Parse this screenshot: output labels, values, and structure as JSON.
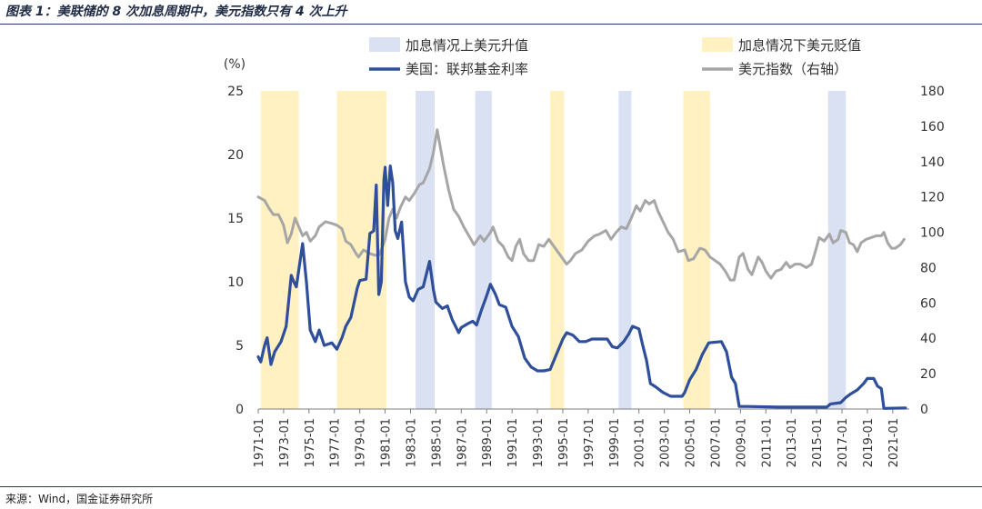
{
  "figure": {
    "title": "图表 1：美联储的 8 次加息周期中，美元指数只有 4 次上升",
    "source": "来源：Wind，国金证券研究所"
  },
  "colors": {
    "up_band": "#d9e1f2",
    "down_band": "#fff1c2",
    "fed_rate": "#2f4f9a",
    "usd_index": "#a6a6a6",
    "axis": "#7f7f7f",
    "text": "#333333"
  },
  "chart_data": {
    "type": "line",
    "title": "",
    "left_unit": "(%)",
    "x_start": 1971.0,
    "x_end": 2022.3,
    "y_left": {
      "min": 0,
      "max": 25,
      "ticks": [
        "0",
        "5",
        "10",
        "15",
        "20",
        "25"
      ]
    },
    "y_right": {
      "min": 0,
      "max": 180,
      "ticks": [
        "0",
        "20",
        "40",
        "60",
        "80",
        "100",
        "120",
        "140",
        "160",
        "180"
      ]
    },
    "x_ticks": [
      "1971-01",
      "1973-01",
      "1975-01",
      "1977-01",
      "1979-01",
      "1981-01",
      "1983-01",
      "1985-01",
      "1987-01",
      "1989-01",
      "1991-01",
      "1993-01",
      "1995-01",
      "1997-01",
      "1999-01",
      "2001-01",
      "2003-01",
      "2005-01",
      "2007-01",
      "2009-01",
      "2011-01",
      "2013-01",
      "2015-01",
      "2017-01",
      "2019-01",
      "2021-01"
    ],
    "legend": {
      "up_band": "加息情况上美元升值",
      "down_band": "加息情况下美元贬值",
      "fed_rate": "美国：联邦基金利率",
      "usd_index": "美元指数（右轴）"
    },
    "bands": [
      {
        "kind": "down",
        "start": 1971.2,
        "end": 1974.2
      },
      {
        "kind": "down",
        "start": 1977.2,
        "end": 1981.1
      },
      {
        "kind": "up",
        "start": 1983.4,
        "end": 1984.9
      },
      {
        "kind": "up",
        "start": 1988.1,
        "end": 1989.4
      },
      {
        "kind": "down",
        "start": 1994.0,
        "end": 1995.1
      },
      {
        "kind": "up",
        "start": 1999.4,
        "end": 2000.4
      },
      {
        "kind": "down",
        "start": 2004.5,
        "end": 2006.6
      },
      {
        "kind": "up",
        "start": 2015.9,
        "end": 2017.3
      }
    ],
    "series": [
      {
        "name": "美国：联邦基金利率",
        "axis": "left",
        "points": [
          [
            1971.0,
            4.1
          ],
          [
            1971.2,
            3.7
          ],
          [
            1971.5,
            5.0
          ],
          [
            1971.7,
            5.6
          ],
          [
            1972.0,
            3.5
          ],
          [
            1972.3,
            4.5
          ],
          [
            1972.8,
            5.3
          ],
          [
            1973.2,
            6.5
          ],
          [
            1973.6,
            10.5
          ],
          [
            1973.8,
            10.0
          ],
          [
            1974.0,
            9.6
          ],
          [
            1974.5,
            13.0
          ],
          [
            1974.8,
            10.0
          ],
          [
            1975.1,
            6.2
          ],
          [
            1975.5,
            5.3
          ],
          [
            1975.8,
            6.2
          ],
          [
            1976.2,
            5.0
          ],
          [
            1976.8,
            5.2
          ],
          [
            1977.2,
            4.7
          ],
          [
            1977.6,
            5.6
          ],
          [
            1977.9,
            6.5
          ],
          [
            1978.3,
            7.2
          ],
          [
            1978.8,
            9.5
          ],
          [
            1979.0,
            10.1
          ],
          [
            1979.5,
            10.2
          ],
          [
            1979.8,
            13.8
          ],
          [
            1980.1,
            14.0
          ],
          [
            1980.3,
            17.6
          ],
          [
            1980.5,
            9.0
          ],
          [
            1980.7,
            10.0
          ],
          [
            1980.9,
            18.0
          ],
          [
            1981.0,
            19.0
          ],
          [
            1981.2,
            16.0
          ],
          [
            1981.4,
            19.1
          ],
          [
            1981.6,
            17.8
          ],
          [
            1981.8,
            14.0
          ],
          [
            1982.0,
            13.4
          ],
          [
            1982.3,
            14.7
          ],
          [
            1982.6,
            10.0
          ],
          [
            1982.9,
            8.8
          ],
          [
            1983.2,
            8.5
          ],
          [
            1983.6,
            9.4
          ],
          [
            1984.0,
            9.6
          ],
          [
            1984.5,
            11.6
          ],
          [
            1984.8,
            9.4
          ],
          [
            1985.0,
            8.4
          ],
          [
            1985.5,
            7.9
          ],
          [
            1985.9,
            8.1
          ],
          [
            1986.3,
            7.0
          ],
          [
            1986.8,
            6.0
          ],
          [
            1987.0,
            6.4
          ],
          [
            1987.5,
            6.7
          ],
          [
            1987.9,
            6.9
          ],
          [
            1988.2,
            6.6
          ],
          [
            1988.6,
            7.8
          ],
          [
            1989.0,
            8.9
          ],
          [
            1989.3,
            9.8
          ],
          [
            1989.7,
            9.0
          ],
          [
            1990.0,
            8.2
          ],
          [
            1990.5,
            8.0
          ],
          [
            1991.0,
            6.5
          ],
          [
            1991.5,
            5.7
          ],
          [
            1992.0,
            4.0
          ],
          [
            1992.5,
            3.3
          ],
          [
            1993.0,
            3.0
          ],
          [
            1993.5,
            3.0
          ],
          [
            1994.0,
            3.1
          ],
          [
            1994.5,
            4.3
          ],
          [
            1995.0,
            5.5
          ],
          [
            1995.3,
            6.0
          ],
          [
            1995.8,
            5.8
          ],
          [
            1996.3,
            5.3
          ],
          [
            1996.8,
            5.3
          ],
          [
            1997.3,
            5.5
          ],
          [
            1997.9,
            5.5
          ],
          [
            1998.5,
            5.5
          ],
          [
            1998.9,
            4.9
          ],
          [
            1999.3,
            4.8
          ],
          [
            1999.8,
            5.3
          ],
          [
            2000.2,
            5.9
          ],
          [
            2000.5,
            6.5
          ],
          [
            2001.0,
            6.3
          ],
          [
            2001.3,
            5.0
          ],
          [
            2001.6,
            3.8
          ],
          [
            2001.9,
            2.0
          ],
          [
            2002.3,
            1.75
          ],
          [
            2002.9,
            1.3
          ],
          [
            2003.5,
            1.0
          ],
          [
            2004.4,
            1.0
          ],
          [
            2004.6,
            1.3
          ],
          [
            2005.0,
            2.3
          ],
          [
            2005.5,
            3.1
          ],
          [
            2006.0,
            4.3
          ],
          [
            2006.5,
            5.2
          ],
          [
            2007.5,
            5.3
          ],
          [
            2007.9,
            4.5
          ],
          [
            2008.3,
            2.5
          ],
          [
            2008.6,
            2.0
          ],
          [
            2008.9,
            0.2
          ],
          [
            2009.5,
            0.2
          ],
          [
            2012.0,
            0.15
          ],
          [
            2015.8,
            0.15
          ],
          [
            2016.1,
            0.4
          ],
          [
            2016.9,
            0.5
          ],
          [
            2017.3,
            0.9
          ],
          [
            2017.7,
            1.2
          ],
          [
            2018.2,
            1.5
          ],
          [
            2018.7,
            2.0
          ],
          [
            2019.0,
            2.4
          ],
          [
            2019.5,
            2.4
          ],
          [
            2019.8,
            1.8
          ],
          [
            2020.1,
            1.6
          ],
          [
            2020.3,
            0.05
          ],
          [
            2022.0,
            0.08
          ]
        ]
      },
      {
        "name": "美元指数（右轴）",
        "axis": "right",
        "points": [
          [
            1971.0,
            120
          ],
          [
            1971.5,
            118
          ],
          [
            1971.9,
            113
          ],
          [
            1972.2,
            110
          ],
          [
            1972.6,
            110
          ],
          [
            1973.0,
            104
          ],
          [
            1973.3,
            94
          ],
          [
            1973.6,
            99
          ],
          [
            1973.9,
            108
          ],
          [
            1974.2,
            103
          ],
          [
            1974.5,
            98
          ],
          [
            1974.8,
            100
          ],
          [
            1975.1,
            95
          ],
          [
            1975.5,
            98
          ],
          [
            1975.8,
            103
          ],
          [
            1976.3,
            106
          ],
          [
            1976.8,
            105
          ],
          [
            1977.2,
            104
          ],
          [
            1977.6,
            102
          ],
          [
            1977.9,
            95
          ],
          [
            1978.3,
            93
          ],
          [
            1978.7,
            88
          ],
          [
            1978.9,
            86
          ],
          [
            1979.3,
            90
          ],
          [
            1979.8,
            88
          ],
          [
            1980.2,
            87
          ],
          [
            1980.5,
            87
          ],
          [
            1980.8,
            92
          ],
          [
            1981.0,
            96
          ],
          [
            1981.3,
            108
          ],
          [
            1981.6,
            113
          ],
          [
            1981.9,
            108
          ],
          [
            1982.2,
            114
          ],
          [
            1982.6,
            120
          ],
          [
            1982.9,
            118
          ],
          [
            1983.3,
            122
          ],
          [
            1983.7,
            127
          ],
          [
            1984.0,
            128
          ],
          [
            1984.5,
            136
          ],
          [
            1984.8,
            145
          ],
          [
            1985.1,
            158
          ],
          [
            1985.3,
            150
          ],
          [
            1985.6,
            138
          ],
          [
            1986.0,
            124
          ],
          [
            1986.4,
            113
          ],
          [
            1986.8,
            109
          ],
          [
            1987.2,
            103
          ],
          [
            1987.6,
            98
          ],
          [
            1988.0,
            93
          ],
          [
            1988.5,
            98
          ],
          [
            1988.8,
            95
          ],
          [
            1989.3,
            100
          ],
          [
            1989.5,
            103
          ],
          [
            1989.9,
            95
          ],
          [
            1990.3,
            92
          ],
          [
            1990.7,
            86
          ],
          [
            1991.0,
            84
          ],
          [
            1991.3,
            92
          ],
          [
            1991.6,
            96
          ],
          [
            1991.9,
            88
          ],
          [
            1992.3,
            84
          ],
          [
            1992.7,
            84
          ],
          [
            1993.1,
            93
          ],
          [
            1993.5,
            92
          ],
          [
            1993.9,
            96
          ],
          [
            1994.3,
            92
          ],
          [
            1994.7,
            88
          ],
          [
            1995.1,
            84
          ],
          [
            1995.3,
            82
          ],
          [
            1995.6,
            84
          ],
          [
            1996.0,
            88
          ],
          [
            1996.5,
            90
          ],
          [
            1997.0,
            95
          ],
          [
            1997.5,
            98
          ],
          [
            1997.9,
            99
          ],
          [
            1998.4,
            101
          ],
          [
            1998.8,
            96
          ],
          [
            1999.2,
            100
          ],
          [
            1999.6,
            103
          ],
          [
            2000.0,
            102
          ],
          [
            2000.4,
            108
          ],
          [
            2000.8,
            115
          ],
          [
            2001.1,
            112
          ],
          [
            2001.5,
            118
          ],
          [
            2001.8,
            116
          ],
          [
            2002.2,
            118
          ],
          [
            2002.5,
            112
          ],
          [
            2002.9,
            106
          ],
          [
            2003.3,
            100
          ],
          [
            2003.7,
            96
          ],
          [
            2004.1,
            89
          ],
          [
            2004.6,
            90
          ],
          [
            2004.9,
            84
          ],
          [
            2005.3,
            85
          ],
          [
            2005.8,
            91
          ],
          [
            2006.2,
            90
          ],
          [
            2006.6,
            86
          ],
          [
            2007.0,
            84
          ],
          [
            2007.4,
            82
          ],
          [
            2007.8,
            78
          ],
          [
            2008.2,
            73
          ],
          [
            2008.5,
            73
          ],
          [
            2008.9,
            86
          ],
          [
            2009.2,
            88
          ],
          [
            2009.6,
            79
          ],
          [
            2009.9,
            76
          ],
          [
            2010.4,
            86
          ],
          [
            2010.7,
            83
          ],
          [
            2011.0,
            78
          ],
          [
            2011.4,
            74
          ],
          [
            2011.8,
            78
          ],
          [
            2012.2,
            79
          ],
          [
            2012.6,
            83
          ],
          [
            2012.9,
            80
          ],
          [
            2013.3,
            82
          ],
          [
            2013.7,
            82
          ],
          [
            2014.2,
            80
          ],
          [
            2014.6,
            82
          ],
          [
            2014.9,
            89
          ],
          [
            2015.2,
            97
          ],
          [
            2015.6,
            95
          ],
          [
            2016.0,
            99
          ],
          [
            2016.3,
            94
          ],
          [
            2016.7,
            96
          ],
          [
            2016.9,
            101
          ],
          [
            2017.3,
            100
          ],
          [
            2017.6,
            94
          ],
          [
            2017.9,
            93
          ],
          [
            2018.2,
            89
          ],
          [
            2018.5,
            94
          ],
          [
            2018.9,
            96
          ],
          [
            2019.3,
            97
          ],
          [
            2019.7,
            98
          ],
          [
            2020.1,
            98
          ],
          [
            2020.3,
            100
          ],
          [
            2020.6,
            94
          ],
          [
            2020.9,
            91
          ],
          [
            2021.2,
            91
          ],
          [
            2021.6,
            93
          ],
          [
            2021.9,
            96
          ]
        ]
      }
    ]
  }
}
